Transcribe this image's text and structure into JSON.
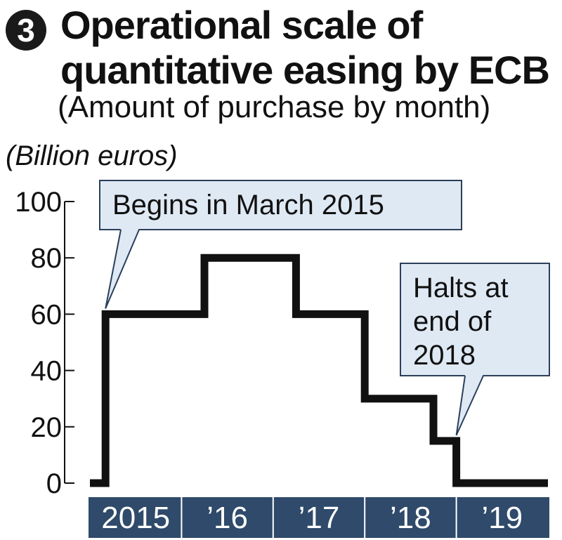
{
  "header": {
    "number_badge": "3",
    "title_line1": "Operational scale of",
    "title_line2": "quantitative easing by ECB",
    "subtitle": "(Amount of purchase by month)"
  },
  "chart_data": {
    "type": "line",
    "title": "Operational scale of quantitative easing by ECB",
    "subtitle": "(Amount of purchase by month)",
    "unit_label": "(Billion euros)",
    "ylabel": "(Billion euros)",
    "xlabel": "",
    "ylim": [
      0,
      100
    ],
    "yticks": [
      0,
      20,
      40,
      60,
      80,
      100
    ],
    "x_categories": [
      "2015",
      "’16",
      "’17",
      "’18",
      "’19"
    ],
    "xlim": [
      2015.0,
      2020.0
    ],
    "series": [
      {
        "points": [
          {
            "x": 2015.0,
            "y": 0
          },
          {
            "x": 2015.17,
            "y": 0
          },
          {
            "x": 2015.17,
            "y": 60
          },
          {
            "x": 2016.25,
            "y": 60
          },
          {
            "x": 2016.25,
            "y": 80
          },
          {
            "x": 2017.25,
            "y": 80
          },
          {
            "x": 2017.25,
            "y": 60
          },
          {
            "x": 2018.0,
            "y": 60
          },
          {
            "x": 2018.0,
            "y": 30
          },
          {
            "x": 2018.75,
            "y": 30
          },
          {
            "x": 2018.75,
            "y": 15
          },
          {
            "x": 2019.0,
            "y": 15
          },
          {
            "x": 2019.0,
            "y": 0
          },
          {
            "x": 2020.0,
            "y": 0
          }
        ]
      }
    ],
    "annotations": [
      {
        "text": [
          "Begins in March 2015"
        ],
        "x": 2015.17,
        "y": 60
      },
      {
        "text": [
          "Halts at",
          "end of",
          "2018"
        ],
        "x": 2019.0,
        "y": 15
      }
    ],
    "colors": {
      "line": "#111111",
      "axis_band": "#2f4a6a",
      "callout_fill": "#dfe9f4",
      "callout_stroke": "#2a3f5a"
    },
    "grid": false,
    "legend": "none"
  }
}
